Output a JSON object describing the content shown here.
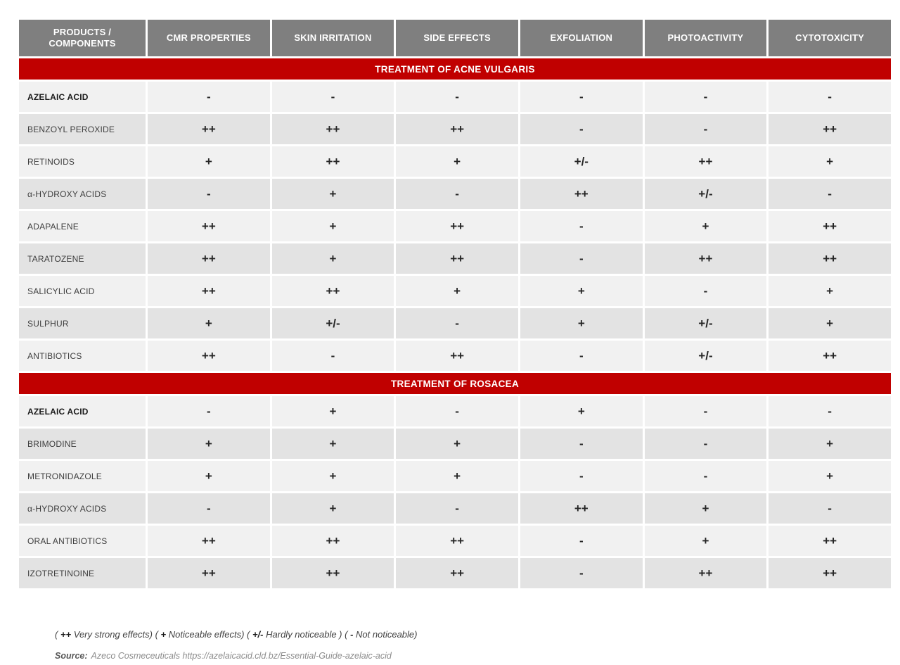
{
  "table": {
    "columns": [
      "PRODUCTS / COMPONENTS",
      "CMR PROPERTIES",
      "SKIN IRRITATION",
      "SIDE EFFECTS",
      "EXFOLIATION",
      "PHOTOACTIVITY",
      "CYTOTOXICITY"
    ],
    "sections": [
      {
        "title": "TREATMENT OF ACNE VULGARIS",
        "rows": [
          {
            "name": "AZELAIC ACID",
            "bold": true,
            "values": [
              "-",
              "-",
              "-",
              "-",
              "-",
              "-"
            ]
          },
          {
            "name": "BENZOYL PEROXIDE",
            "bold": false,
            "values": [
              "++",
              "++",
              "++",
              "-",
              "-",
              "++"
            ]
          },
          {
            "name": "RETINOIDS",
            "bold": false,
            "values": [
              "+",
              "++",
              "+",
              "+/-",
              "++",
              "+"
            ]
          },
          {
            "name": "α-HYDROXY ACIDS",
            "bold": false,
            "values": [
              "-",
              "+",
              "-",
              "++",
              "+/-",
              "-"
            ]
          },
          {
            "name": "ADAPALENE",
            "bold": false,
            "values": [
              "++",
              "+",
              "++",
              "-",
              "+",
              "++"
            ]
          },
          {
            "name": "TARATOZENE",
            "bold": false,
            "values": [
              "++",
              "+",
              "++",
              "-",
              "++",
              "++"
            ]
          },
          {
            "name": "SALICYLIC ACID",
            "bold": false,
            "values": [
              "++",
              "++",
              "+",
              "+",
              "-",
              "+"
            ]
          },
          {
            "name": "SULPHUR",
            "bold": false,
            "values": [
              "+",
              "+/-",
              "-",
              "+",
              "+/-",
              "+"
            ]
          },
          {
            "name": "ANTIBIOTICS",
            "bold": false,
            "values": [
              "++",
              "-",
              "++",
              "-",
              "+/-",
              "++"
            ]
          }
        ]
      },
      {
        "title": "TREATMENT OF ROSACEA",
        "rows": [
          {
            "name": "AZELAIC ACID",
            "bold": true,
            "values": [
              "-",
              "+",
              "-",
              "+",
              "-",
              "-"
            ]
          },
          {
            "name": "BRIMODINE",
            "bold": false,
            "values": [
              "+",
              "+",
              "+",
              "-",
              "-",
              "+"
            ]
          },
          {
            "name": "METRONIDAZOLE",
            "bold": false,
            "values": [
              "+",
              "+",
              "+",
              "-",
              "-",
              "+"
            ]
          },
          {
            "name": "α-HYDROXY ACIDS",
            "bold": false,
            "values": [
              "-",
              "+",
              "-",
              "++",
              "+",
              "-"
            ]
          },
          {
            "name": "ORAL ANTIBIOTICS",
            "bold": false,
            "values": [
              "++",
              "++",
              "++",
              "-",
              "+",
              "++"
            ]
          },
          {
            "name": "IZOTRETINOINE",
            "bold": false,
            "values": [
              "++",
              "++",
              "++",
              "-",
              "++",
              "++"
            ]
          }
        ]
      }
    ]
  },
  "legend": {
    "parts": [
      {
        "text": "( "
      },
      {
        "text": "++"
      },
      {
        "text": " Very strong effects) ( "
      },
      {
        "text": "+"
      },
      {
        "text": " Noticeable effects) ( "
      },
      {
        "text": "+/-"
      },
      {
        "text": " Hardly noticeable ) ( "
      },
      {
        "text": "-"
      },
      {
        "text": " Not noticeable)"
      }
    ]
  },
  "source": {
    "label": "Source:",
    "text": "Azeco Cosmeceuticals https://azelaicacid.cld.bz/Essential-Guide-azelaic-acid"
  },
  "colors": {
    "header_gray": "#7f7f7f",
    "section_red": "#c00000",
    "row_light": "#f1f1f1",
    "row_dark": "#e3e3e3",
    "header_text": "#ffffff",
    "symbol_text": "#262626"
  }
}
